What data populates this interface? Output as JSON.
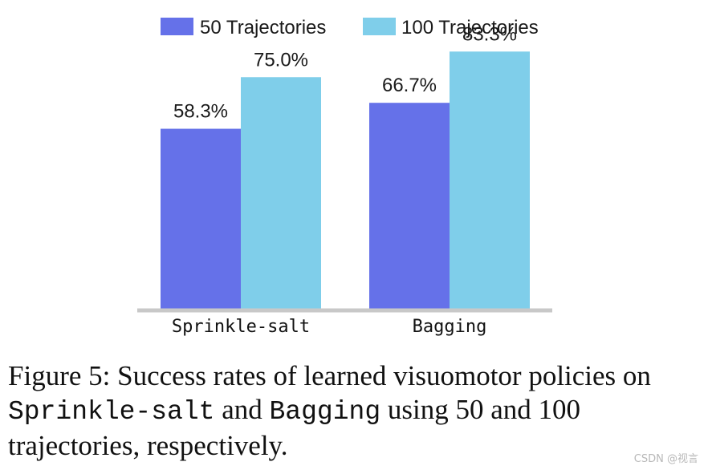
{
  "chart_data": {
    "type": "bar",
    "categories": [
      "Sprinkle-salt",
      "Bagging"
    ],
    "series": [
      {
        "name": "50 Trajectories",
        "values": [
          58.3,
          66.7
        ],
        "labels": [
          "58.3%",
          "66.7%"
        ],
        "color": "#6571E9"
      },
      {
        "name": "100 Trajectories",
        "values": [
          75.0,
          83.3
        ],
        "labels": [
          "75.0%",
          "83.3%"
        ],
        "color": "#7FCEEA"
      }
    ],
    "ylim": [
      0,
      100
    ],
    "grid": false,
    "legend_position": "top-center",
    "axis_color": "#c8c8c8"
  },
  "caption": {
    "part1": "Figure 5:  Success rates of learned visuomotor policies on ",
    "code1": "Sprinkle-salt",
    "part2": " and ",
    "code2": "Bagging",
    "part3": " using 50 and 100 trajectories, respectively."
  },
  "watermark": "CSDN @视言"
}
